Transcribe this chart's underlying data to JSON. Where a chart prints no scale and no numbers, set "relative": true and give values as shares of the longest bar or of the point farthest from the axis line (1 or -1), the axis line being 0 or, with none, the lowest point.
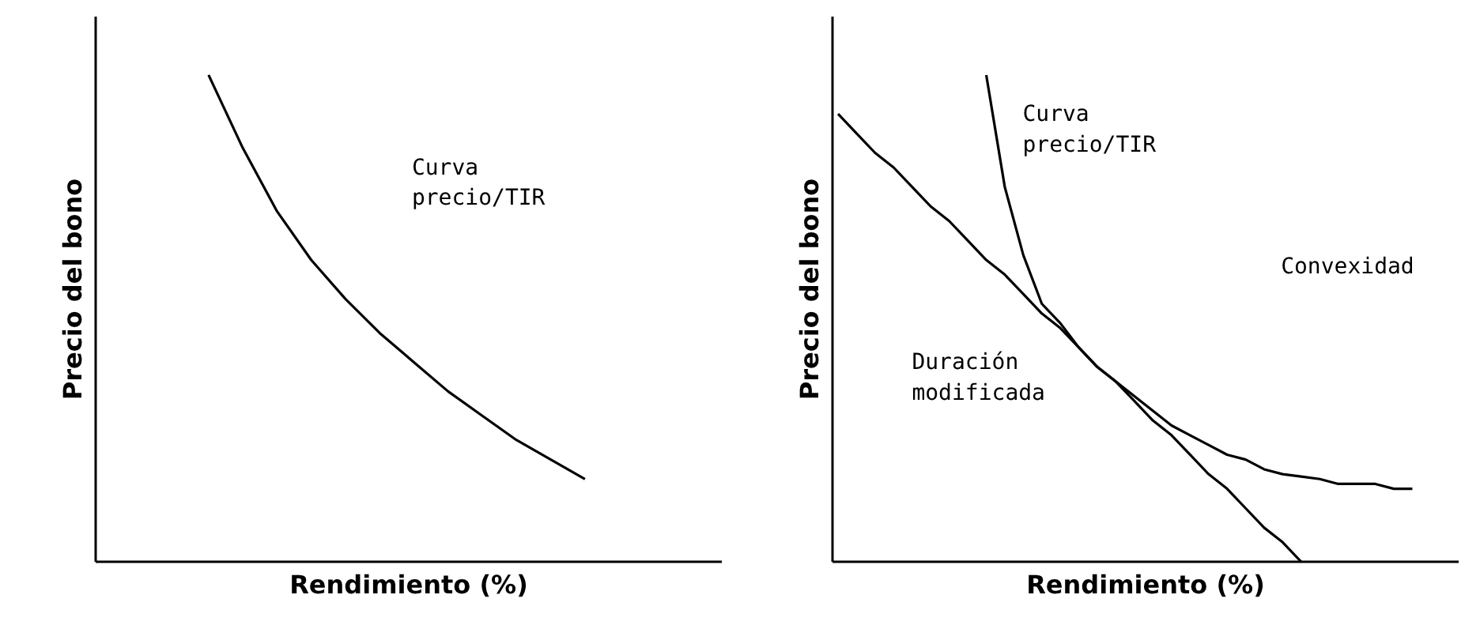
{
  "chart_data": [
    {
      "type": "line",
      "relative": true,
      "xlabel": "Rendimiento (%)",
      "ylabel": "Precio del bono",
      "categories": [
        null,
        null,
        null,
        null,
        null,
        null,
        null,
        null,
        null,
        null,
        null,
        null
      ],
      "series": [
        {
          "color": "#000000",
          "values": [
            1.0,
            0.85,
            0.72,
            0.62,
            0.54,
            0.47,
            0.41,
            0.35,
            0.3,
            0.25,
            0.21,
            0.17
          ]
        }
      ],
      "annotations": [
        "Curva\nprecio/TIR"
      ],
      "grid": false,
      "legend": false,
      "marker": "none",
      "line_style": "solid"
    },
    {
      "type": "line",
      "relative": true,
      "xlabel": "Rendimiento (%)",
      "ylabel": "Precio del bono",
      "categories": [
        null,
        null,
        null,
        null,
        null,
        null,
        null,
        null,
        null,
        null,
        null,
        null,
        null,
        null,
        null,
        null,
        null,
        null,
        null,
        null,
        null,
        null,
        null,
        null,
        null,
        null,
        null,
        null,
        null,
        null,
        null,
        null
      ],
      "series": [
        {
          "color": "#000000",
          "values": [
            0.92,
            0.88,
            0.84,
            0.81,
            0.77,
            0.73,
            0.7,
            0.66,
            0.62,
            0.59,
            0.55,
            0.51,
            0.48,
            0.44,
            0.4,
            0.37,
            0.33,
            0.29,
            0.26,
            0.22,
            0.18,
            0.15,
            0.11,
            0.07,
            0.04,
            0,
            null,
            null,
            null,
            null,
            null,
            null
          ]
        },
        {
          "color": "#000000",
          "values": [
            null,
            null,
            null,
            null,
            null,
            null,
            null,
            null,
            1.0,
            0.77,
            0.63,
            0.53,
            0.49,
            0.44,
            0.4,
            0.37,
            0.34,
            0.31,
            0.28,
            0.26,
            0.24,
            0.22,
            0.21,
            0.19,
            0.18,
            0.175,
            0.17,
            0.16,
            0.16,
            0.16,
            0.15,
            0.15
          ]
        }
      ],
      "annotations": [
        "Curva\nprecio/TIR",
        "Convexidad",
        "Duración\nmodificada"
      ],
      "grid": false,
      "legend": false,
      "marker": "none",
      "line_style": "solid"
    }
  ]
}
